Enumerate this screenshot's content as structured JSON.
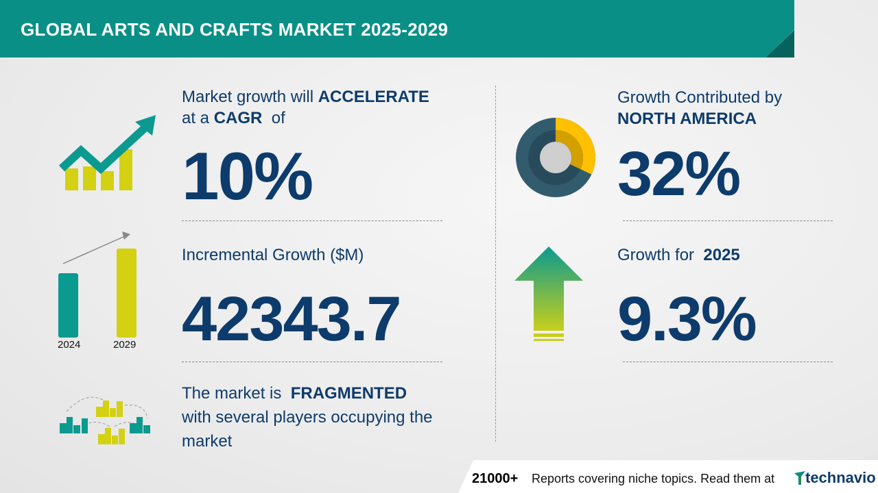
{
  "header": {
    "title": "GLOBAL ARTS AND CRAFTS MARKET 2025-2029"
  },
  "cagr": {
    "line1_prefix": "Market growth will",
    "line1_bold": "ACCELERATE",
    "line2_prefix": "at a",
    "line2_bold": "CAGR",
    "line2_suffix": "of",
    "value": "10%",
    "icon": "trend-up-chart-icon"
  },
  "incremental": {
    "label": "Incremental Growth ($M)",
    "value": "42343.7",
    "years": [
      "2024",
      "2029"
    ],
    "icon": "bar-growth-icon"
  },
  "fragmented": {
    "line1_prefix": "The market is",
    "line1_bold": "FRAGMENTED",
    "line2": "with several players occupying the",
    "line3": "market",
    "icon": "buildings-network-icon"
  },
  "region": {
    "label": "Growth Contributed by",
    "region": "NORTH AMERICA",
    "value": "32%",
    "share": 0.32,
    "icon": "donut-chart-icon"
  },
  "growth_year": {
    "label": "Growth for",
    "year": "2025",
    "value": "9.3%",
    "icon": "up-arrow-icon"
  },
  "footer": {
    "count": "21000+",
    "text": "Reports covering niche topics. Read them at",
    "brand": "technavio"
  },
  "colors": {
    "teal": "#0a8f87",
    "navy": "#0d3b6b",
    "lime": "#d4d012",
    "gold": "#ffc000",
    "slate": "#335b6e"
  }
}
